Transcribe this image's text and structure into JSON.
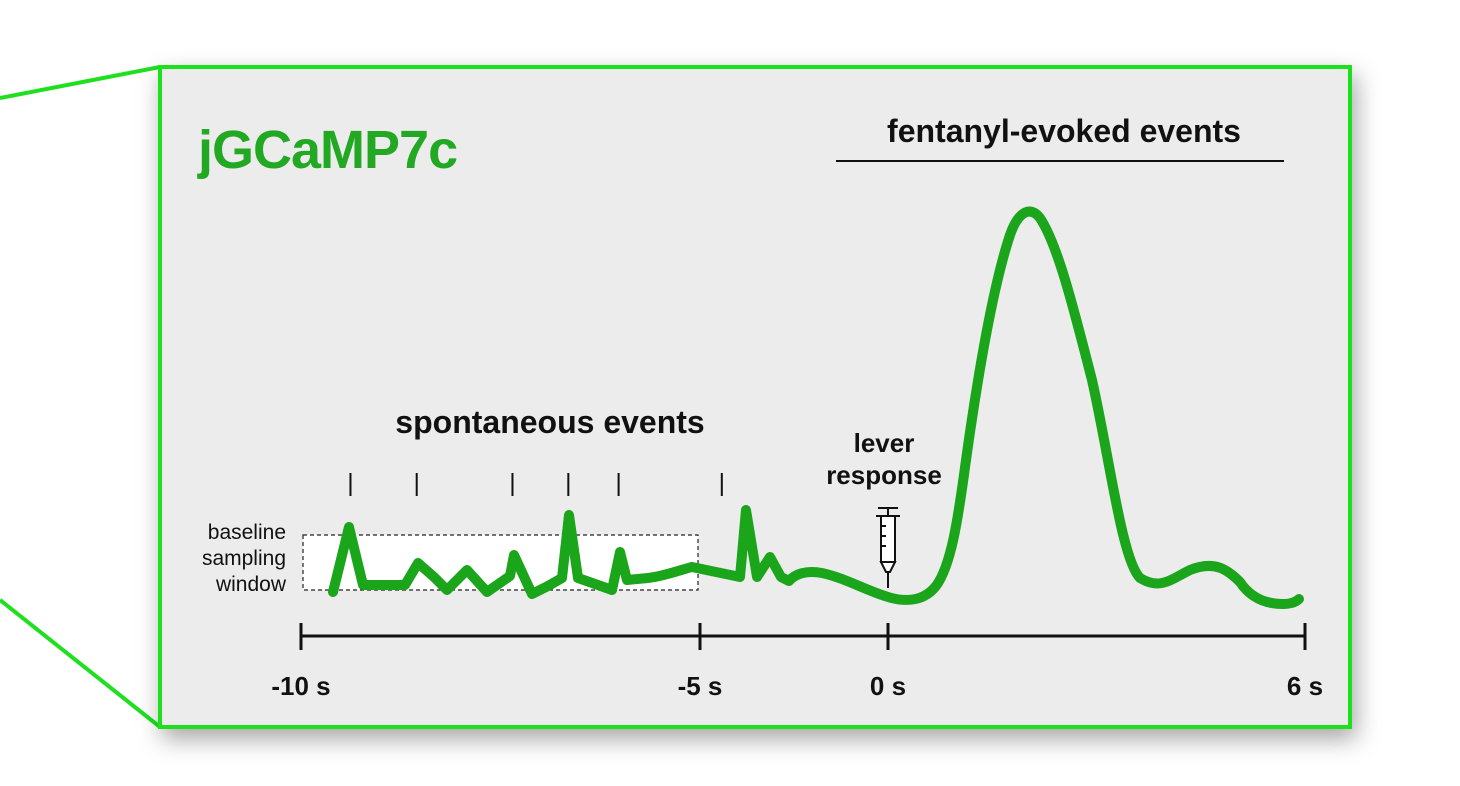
{
  "title": "jGCaMP7c",
  "colors": {
    "accent": "#1fe01f",
    "trace": "#1aa51a",
    "title": "#22a822",
    "panel_bg": "#ececec",
    "text": "#111111"
  },
  "headings": {
    "fentanyl": "fentanyl-evoked events",
    "spontaneous": "spontaneous events"
  },
  "lever": {
    "line1": "lever",
    "line2": "response",
    "icon": "syringe-icon"
  },
  "baseline": {
    "line1": "baseline",
    "line2": "sampling",
    "line3": "window",
    "range_s": [
      -10,
      -5
    ]
  },
  "axis": {
    "min": -10,
    "max": 6,
    "ticks": [
      {
        "value": -10,
        "label": "-10 s"
      },
      {
        "value": -5,
        "label": "-5 s"
      },
      {
        "value": 0,
        "label": "0 s"
      },
      {
        "value": 6,
        "label": "6 s"
      }
    ]
  },
  "spontaneous_event_times_s": [
    -9.38,
    -8.55,
    -7.35,
    -6.65,
    -6.02,
    -4.42
  ]
}
